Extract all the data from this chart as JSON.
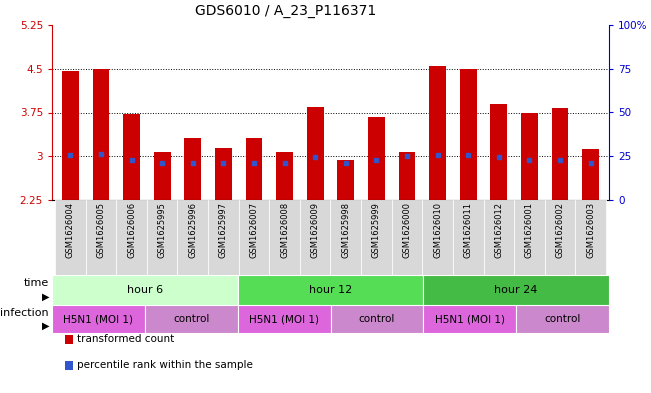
{
  "title": "GDS6010 / A_23_P116371",
  "samples": [
    "GSM1626004",
    "GSM1626005",
    "GSM1626006",
    "GSM1625995",
    "GSM1625996",
    "GSM1625997",
    "GSM1626007",
    "GSM1626008",
    "GSM1626009",
    "GSM1625998",
    "GSM1625999",
    "GSM1626000",
    "GSM1626010",
    "GSM1626011",
    "GSM1626012",
    "GSM1626001",
    "GSM1626002",
    "GSM1626003"
  ],
  "bar_values": [
    4.47,
    4.5,
    3.73,
    3.07,
    3.32,
    3.15,
    3.32,
    3.07,
    3.85,
    2.93,
    3.67,
    3.07,
    4.54,
    4.5,
    3.9,
    3.75,
    3.82,
    3.12
  ],
  "blue_positions": [
    3.02,
    3.04,
    2.93,
    2.88,
    2.88,
    2.88,
    2.88,
    2.88,
    2.98,
    2.88,
    2.93,
    3.0,
    3.03,
    3.03,
    2.98,
    2.93,
    2.93,
    2.88
  ],
  "ylim": [
    2.25,
    5.25
  ],
  "yticks": [
    2.25,
    3.0,
    3.75,
    4.5,
    5.25
  ],
  "ytick_labels": [
    "2.25",
    "3",
    "3.75",
    "4.5",
    "5.25"
  ],
  "right_yticks": [
    0,
    25,
    50,
    75,
    100
  ],
  "right_ytick_labels": [
    "0",
    "25",
    "50",
    "75",
    "100%"
  ],
  "dotted_lines": [
    3.0,
    3.75,
    4.5
  ],
  "bar_color": "#cc0000",
  "blue_color": "#3355cc",
  "bar_width": 0.55,
  "time_groups": [
    {
      "label": "hour 6",
      "start": 0,
      "end": 6,
      "color": "#ccffcc"
    },
    {
      "label": "hour 12",
      "start": 6,
      "end": 12,
      "color": "#55dd55"
    },
    {
      "label": "hour 24",
      "start": 12,
      "end": 18,
      "color": "#44bb44"
    }
  ],
  "infection_groups": [
    {
      "label": "H5N1 (MOI 1)",
      "start": 0,
      "end": 3,
      "color": "#dd66dd"
    },
    {
      "label": "control",
      "start": 3,
      "end": 6,
      "color": "#cc88cc"
    },
    {
      "label": "H5N1 (MOI 1)",
      "start": 6,
      "end": 9,
      "color": "#dd66dd"
    },
    {
      "label": "control",
      "start": 9,
      "end": 12,
      "color": "#cc88cc"
    },
    {
      "label": "H5N1 (MOI 1)",
      "start": 12,
      "end": 15,
      "color": "#dd66dd"
    },
    {
      "label": "control",
      "start": 15,
      "end": 18,
      "color": "#cc88cc"
    }
  ],
  "axis_color_left": "#cc0000",
  "axis_color_right": "#0000cc",
  "plot_bg": "#ffffff",
  "title_fontsize": 10,
  "tick_fontsize": 7.5,
  "sample_fontsize": 6,
  "row_label_fontsize": 8,
  "row_fontsize": 8,
  "legend_fontsize": 7.5
}
